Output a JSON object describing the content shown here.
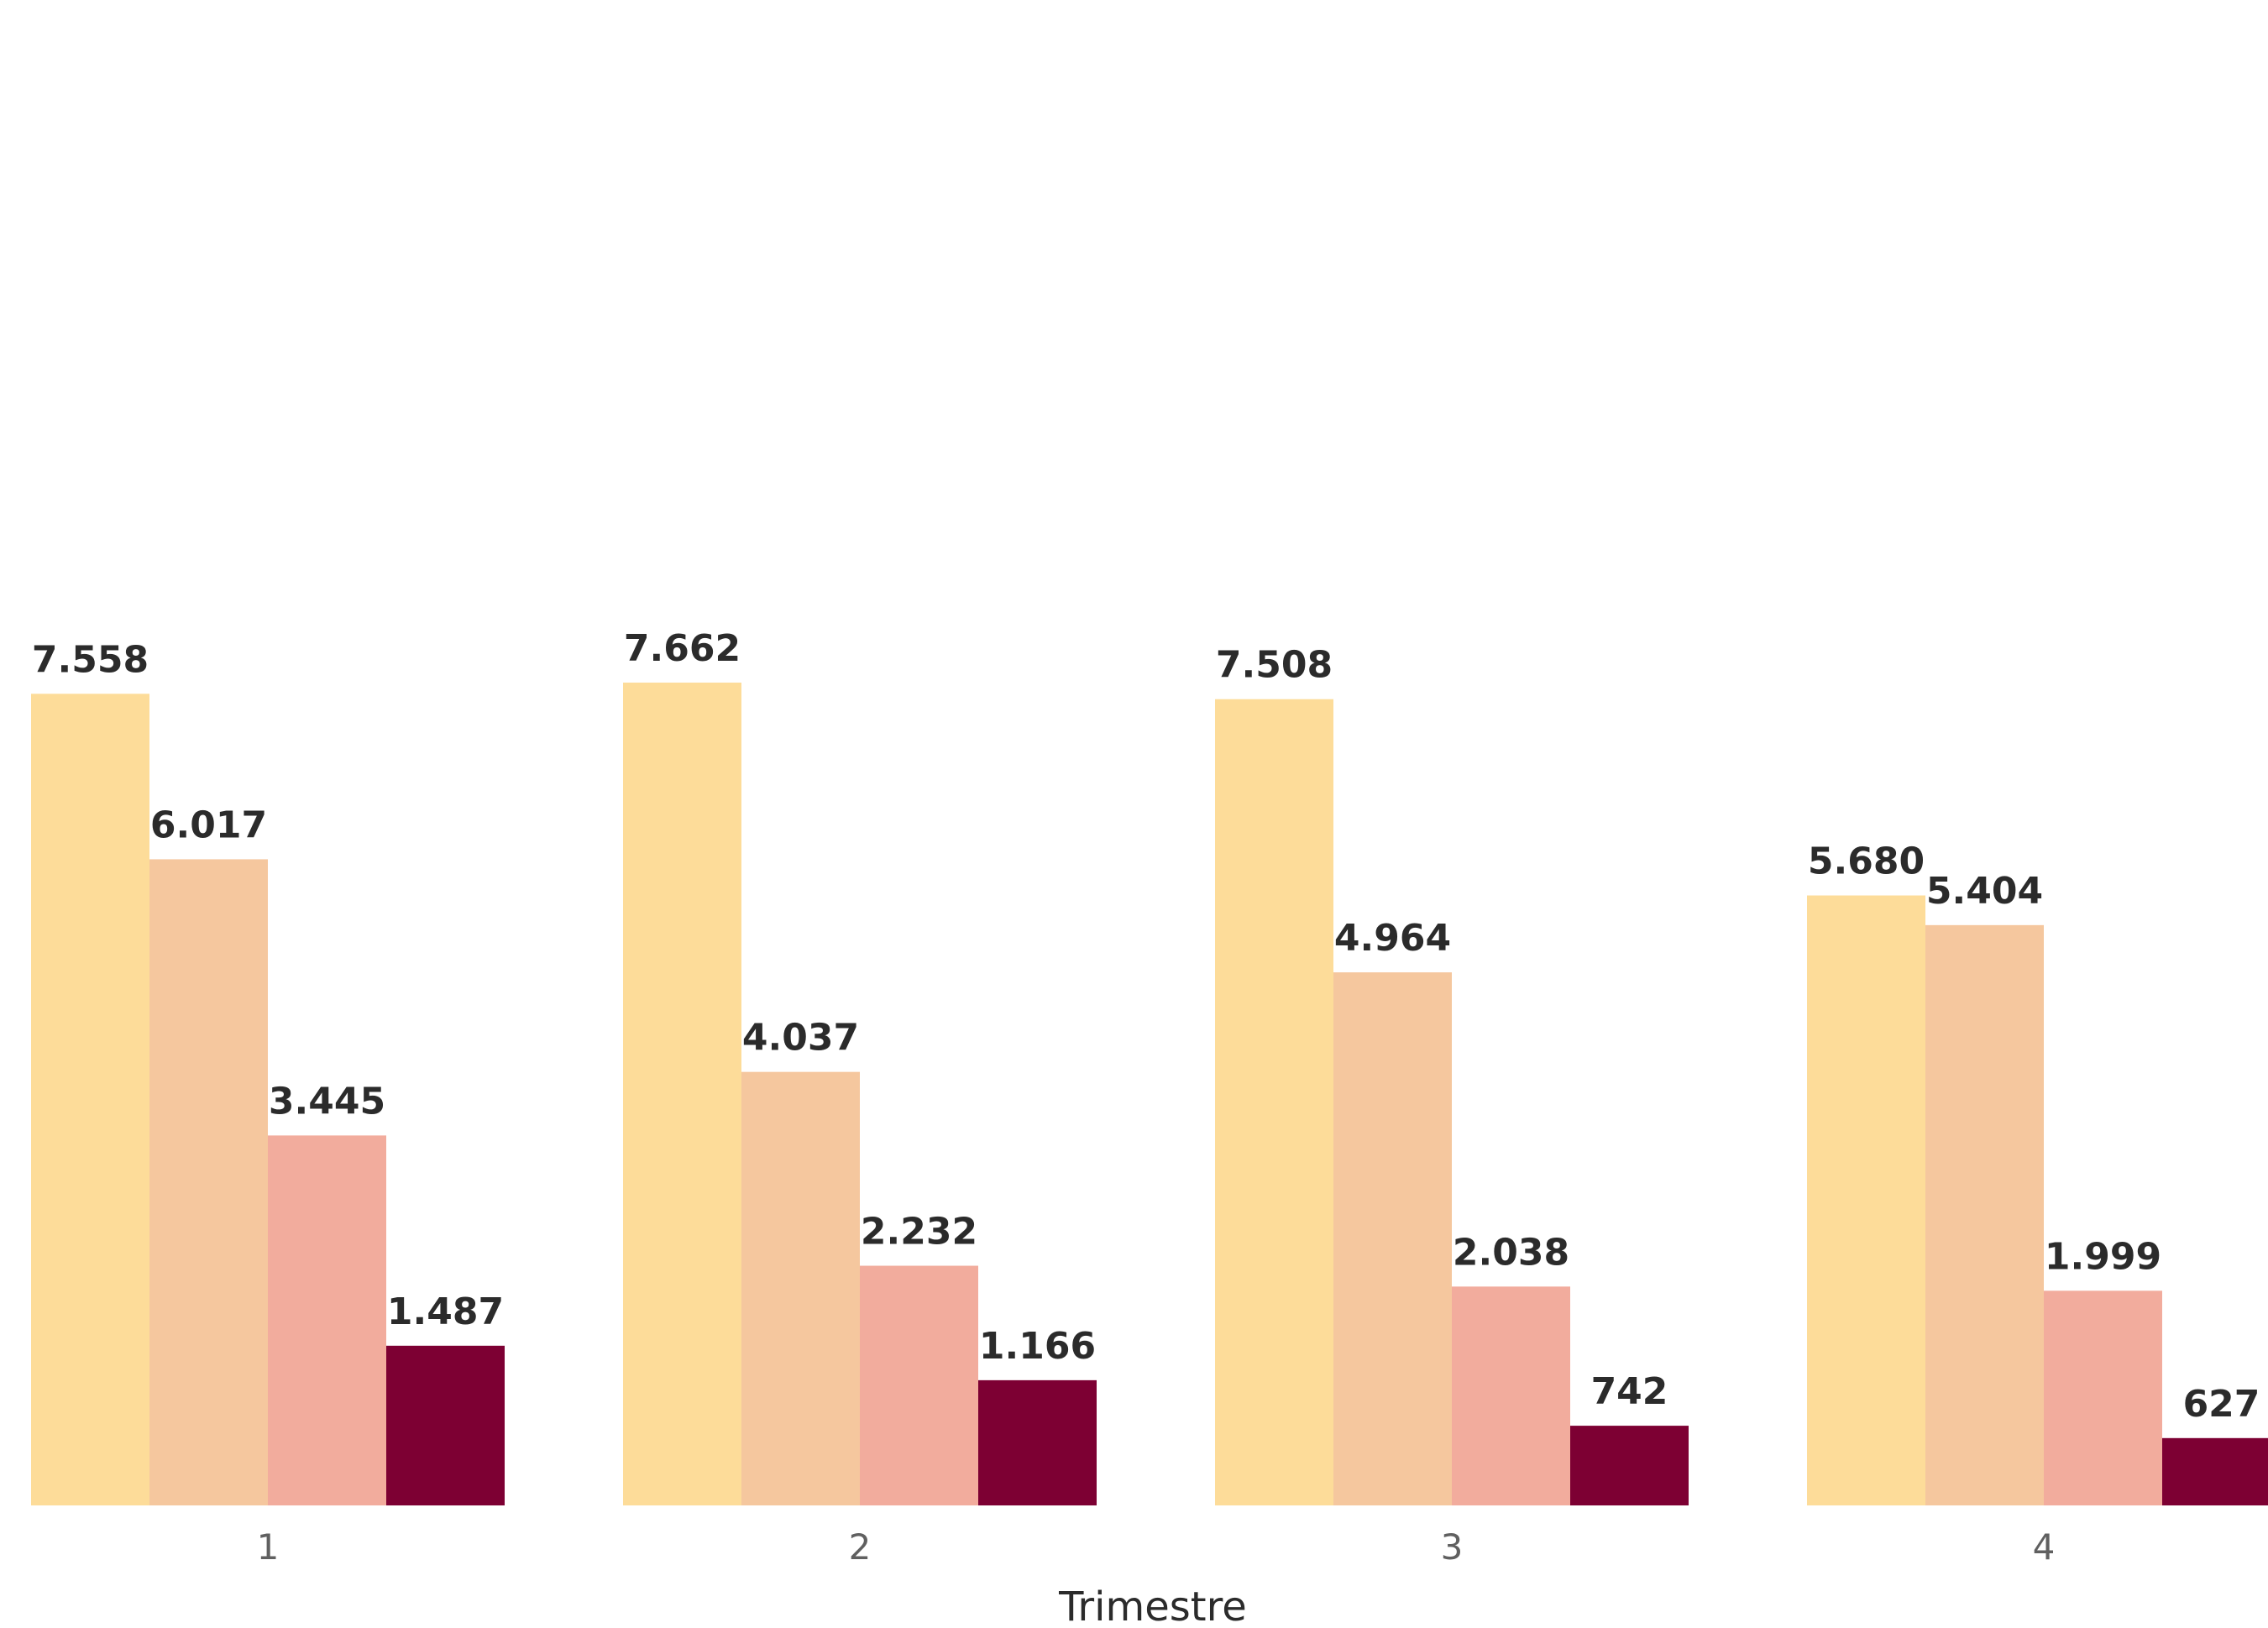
{
  "chart_data": {
    "type": "bar",
    "categories": [
      "1",
      "2",
      "3",
      "4"
    ],
    "series": [
      {
        "values": [
          7558,
          7662,
          7508,
          5680
        ],
        "labels": [
          "7.558",
          "7.662",
          "7.508",
          "5.680"
        ],
        "color": "#FDDC99"
      },
      {
        "values": [
          6017,
          4037,
          4964,
          5404
        ],
        "labels": [
          "6.017",
          "4.037",
          "4.964",
          "5.404"
        ],
        "color": "#F5C79E"
      },
      {
        "values": [
          3445,
          2232,
          2038,
          1999
        ],
        "labels": [
          "3.445",
          "2.232",
          "2.038",
          "1.999"
        ],
        "color": "#F2AC9D"
      },
      {
        "values": [
          1487,
          1166,
          742,
          627
        ],
        "labels": [
          "1.487",
          "1.166",
          "742",
          "627"
        ],
        "color": "#7D0033"
      }
    ],
    "xlabel": "Trimestre",
    "ylabel": "",
    "ylim": [
      0,
      8000
    ],
    "grid": false,
    "legend": "none"
  }
}
